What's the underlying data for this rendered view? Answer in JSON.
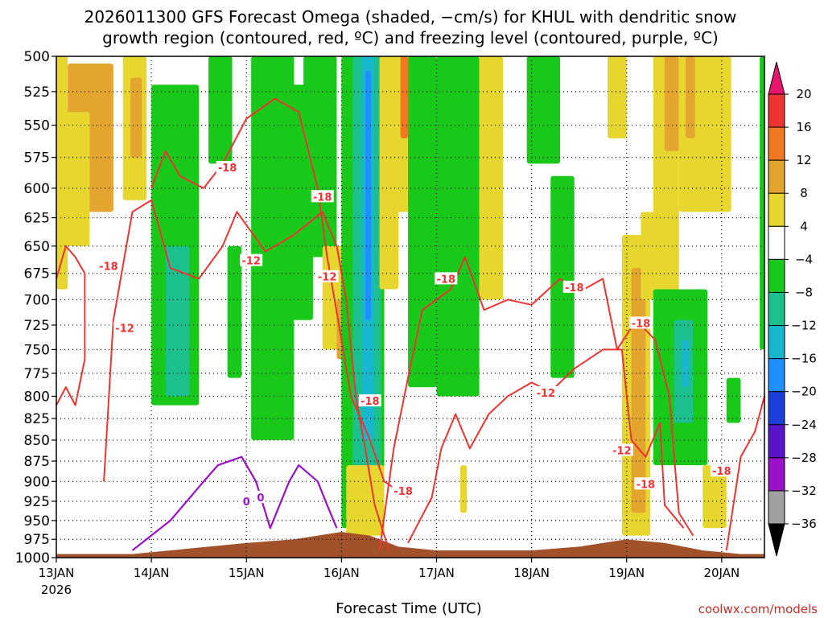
{
  "title": {
    "line1": "2026011300 GFS Forecast Omega (shaded, −cm/s) for KHUL with dendritic snow",
    "line2": "growth region (contoured, red, ºC) and freezing level (contoured, purple, ºC)"
  },
  "credit": "coolwx.com/models",
  "chart_data": {
    "type": "heatmap",
    "xlabel": "Forecast Time (UTC)",
    "ylabel": "",
    "x_start_year": "2026",
    "x_ticks": [
      "13JAN",
      "14JAN",
      "15JAN",
      "16JAN",
      "17JAN",
      "18JAN",
      "19JAN",
      "20JAN"
    ],
    "x_range_days": [
      0,
      7.45
    ],
    "y_ticks": [
      500,
      525,
      550,
      575,
      600,
      625,
      650,
      675,
      700,
      725,
      750,
      775,
      800,
      825,
      850,
      875,
      900,
      925,
      950,
      975,
      1000
    ],
    "y_range_hpa": [
      500,
      1000
    ],
    "grid": true,
    "colorbar": {
      "levels": [
        20,
        16,
        12,
        8,
        4,
        -4,
        -8,
        -12,
        -16,
        -20,
        -24,
        -28,
        -32,
        -36
      ],
      "bands": [
        {
          "from": 20,
          "to": 24,
          "color": "#e8156e"
        },
        {
          "from": 16,
          "to": 20,
          "color": "#ee3333"
        },
        {
          "from": 12,
          "to": 16,
          "color": "#f07820"
        },
        {
          "from": 8,
          "to": 12,
          "color": "#e4a52e"
        },
        {
          "from": 4,
          "to": 8,
          "color": "#e6d62e"
        },
        {
          "from": -4,
          "to": 4,
          "color": "#ffffff"
        },
        {
          "from": -8,
          "to": -4,
          "color": "#19c919"
        },
        {
          "from": -12,
          "to": -8,
          "color": "#1cbf8e"
        },
        {
          "from": -16,
          "to": -12,
          "color": "#19b7cf"
        },
        {
          "from": -20,
          "to": -16,
          "color": "#1e90ff"
        },
        {
          "from": -24,
          "to": -20,
          "color": "#1c3fdc"
        },
        {
          "from": -28,
          "to": -24,
          "color": "#5a14c8"
        },
        {
          "from": -32,
          "to": -28,
          "color": "#9a11c9"
        },
        {
          "from": -36,
          "to": -32,
          "color": "#a0a0a0"
        },
        {
          "from": -40,
          "to": -36,
          "color": "#000000"
        }
      ]
    },
    "omega_patches": [
      {
        "t0": 0.0,
        "t1": 0.12,
        "p0": 500,
        "p1": 690,
        "value": 6
      },
      {
        "t0": 0.12,
        "t1": 0.6,
        "p0": 505,
        "p1": 620,
        "value": 10
      },
      {
        "t0": 0.05,
        "t1": 0.35,
        "p0": 540,
        "p1": 650,
        "value": 6
      },
      {
        "t0": 0.7,
        "t1": 0.95,
        "p0": 500,
        "p1": 610,
        "value": 6
      },
      {
        "t0": 0.78,
        "t1": 0.9,
        "p0": 515,
        "p1": 575,
        "value": 10
      },
      {
        "t0": 1.0,
        "t1": 1.5,
        "p0": 520,
        "p1": 810,
        "value": -6
      },
      {
        "t0": 1.15,
        "t1": 1.4,
        "p0": 650,
        "p1": 800,
        "value": -10
      },
      {
        "t0": 1.6,
        "t1": 1.85,
        "p0": 500,
        "p1": 580,
        "value": -6
      },
      {
        "t0": 1.8,
        "t1": 1.95,
        "p0": 650,
        "p1": 780,
        "value": -6
      },
      {
        "t0": 2.05,
        "t1": 2.5,
        "p0": 500,
        "p1": 850,
        "value": -6
      },
      {
        "t0": 2.4,
        "t1": 2.7,
        "p0": 520,
        "p1": 720,
        "value": -6
      },
      {
        "t0": 2.6,
        "t1": 2.95,
        "p0": 500,
        "p1": 660,
        "value": -6
      },
      {
        "t0": 2.8,
        "t1": 3.05,
        "p0": 650,
        "p1": 750,
        "value": 6
      },
      {
        "t0": 2.95,
        "t1": 3.1,
        "p0": 700,
        "p1": 760,
        "value": 10
      },
      {
        "t0": 3.0,
        "t1": 3.45,
        "p0": 500,
        "p1": 960,
        "value": -6
      },
      {
        "t0": 3.12,
        "t1": 3.42,
        "p0": 500,
        "p1": 900,
        "value": -10
      },
      {
        "t0": 3.22,
        "t1": 3.34,
        "p0": 500,
        "p1": 850,
        "value": -14
      },
      {
        "t0": 3.25,
        "t1": 3.31,
        "p0": 510,
        "p1": 720,
        "value": -18
      },
      {
        "t0": 3.4,
        "t1": 3.6,
        "p0": 500,
        "p1": 690,
        "value": 6
      },
      {
        "t0": 3.55,
        "t1": 3.75,
        "p0": 500,
        "p1": 620,
        "value": 6
      },
      {
        "t0": 3.62,
        "t1": 3.7,
        "p0": 500,
        "p1": 560,
        "value": 14
      },
      {
        "t0": 3.05,
        "t1": 3.45,
        "p0": 880,
        "p1": 970,
        "value": 6
      },
      {
        "t0": 3.7,
        "t1": 4.0,
        "p0": 500,
        "p1": 790,
        "value": -6
      },
      {
        "t0": 4.0,
        "t1": 4.45,
        "p0": 500,
        "p1": 800,
        "value": -6
      },
      {
        "t0": 4.45,
        "t1": 4.7,
        "p0": 500,
        "p1": 700,
        "value": 6
      },
      {
        "t0": 4.25,
        "t1": 4.32,
        "p0": 880,
        "p1": 940,
        "value": 6
      },
      {
        "t0": 4.95,
        "t1": 5.3,
        "p0": 500,
        "p1": 580,
        "value": -6
      },
      {
        "t0": 5.2,
        "t1": 5.45,
        "p0": 590,
        "p1": 780,
        "value": -6
      },
      {
        "t0": 5.8,
        "t1": 6.0,
        "p0": 500,
        "p1": 560,
        "value": 6
      },
      {
        "t0": 5.95,
        "t1": 6.25,
        "p0": 640,
        "p1": 970,
        "value": 6
      },
      {
        "t0": 6.05,
        "t1": 6.2,
        "p0": 670,
        "p1": 940,
        "value": 10
      },
      {
        "t0": 6.28,
        "t1": 6.55,
        "p0": 500,
        "p1": 680,
        "value": 6
      },
      {
        "t0": 6.4,
        "t1": 6.55,
        "p0": 500,
        "p1": 570,
        "value": 10
      },
      {
        "t0": 6.15,
        "t1": 6.55,
        "p0": 620,
        "p1": 700,
        "value": 6
      },
      {
        "t0": 6.28,
        "t1": 6.85,
        "p0": 690,
        "p1": 880,
        "value": -6
      },
      {
        "t0": 6.5,
        "t1": 6.7,
        "p0": 720,
        "p1": 830,
        "value": -10
      },
      {
        "t0": 6.58,
        "t1": 6.65,
        "p0": 740,
        "p1": 790,
        "value": -14
      },
      {
        "t0": 6.55,
        "t1": 7.1,
        "p0": 500,
        "p1": 620,
        "value": 6
      },
      {
        "t0": 6.62,
        "t1": 6.72,
        "p0": 500,
        "p1": 560,
        "value": 10
      },
      {
        "t0": 6.8,
        "t1": 7.05,
        "p0": 880,
        "p1": 960,
        "value": 6
      },
      {
        "t0": 7.05,
        "t1": 7.2,
        "p0": 780,
        "p1": 830,
        "value": -6
      },
      {
        "t0": 7.4,
        "t1": 7.45,
        "p0": 500,
        "p1": 750,
        "value": -6
      }
    ],
    "dgz_contours": [
      {
        "label": "-12",
        "points": [
          [
            0,
            680
          ],
          [
            0.1,
            650
          ],
          [
            0.2,
            660
          ],
          [
            0.3,
            675
          ],
          [
            0.3,
            700
          ],
          [
            0.3,
            760
          ],
          [
            0.2,
            810
          ],
          [
            0.1,
            790
          ],
          [
            0,
            810
          ]
        ]
      },
      {
        "label": "-12",
        "points": [
          [
            0.5,
            900
          ],
          [
            0.6,
            720
          ],
          [
            0.8,
            620
          ],
          [
            1.0,
            610
          ],
          [
            1.2,
            670
          ],
          [
            1.5,
            680
          ],
          [
            1.75,
            650
          ],
          [
            1.9,
            620
          ],
          [
            2.2,
            655
          ],
          [
            2.5,
            640
          ],
          [
            2.8,
            620
          ],
          [
            2.95,
            650
          ],
          [
            3.05,
            700
          ],
          [
            3.15,
            800
          ],
          [
            3.25,
            860
          ],
          [
            3.35,
            930
          ],
          [
            3.5,
            990
          ]
        ]
      },
      {
        "label": "-18",
        "points": [
          [
            1.0,
            600
          ],
          [
            1.15,
            570
          ],
          [
            1.3,
            590
          ],
          [
            1.55,
            600
          ],
          [
            1.75,
            580
          ],
          [
            2.0,
            545
          ],
          [
            2.3,
            530
          ],
          [
            2.55,
            540
          ],
          [
            2.75,
            600
          ],
          [
            2.85,
            660
          ],
          [
            3.0,
            740
          ],
          [
            3.1,
            800
          ],
          [
            3.3,
            850
          ],
          [
            3.45,
            900
          ],
          [
            3.7,
            920
          ]
        ]
      },
      {
        "label": "-12",
        "points": [
          [
            3.7,
            980
          ],
          [
            3.95,
            920
          ],
          [
            4.05,
            860
          ],
          [
            4.2,
            820
          ],
          [
            4.35,
            860
          ],
          [
            4.55,
            820
          ],
          [
            4.75,
            800
          ],
          [
            5.0,
            785
          ],
          [
            5.2,
            795
          ],
          [
            5.45,
            770
          ],
          [
            5.6,
            760
          ],
          [
            5.75,
            750
          ]
        ]
      },
      {
        "label": "-18",
        "points": [
          [
            3.4,
            990
          ],
          [
            3.55,
            860
          ],
          [
            3.7,
            780
          ],
          [
            3.85,
            710
          ],
          [
            4.0,
            700
          ],
          [
            4.15,
            690
          ],
          [
            4.3,
            660
          ],
          [
            4.5,
            710
          ],
          [
            4.75,
            700
          ],
          [
            5.0,
            705
          ],
          [
            5.3,
            680
          ],
          [
            5.45,
            690
          ]
        ]
      },
      {
        "label": "-12",
        "points": [
          [
            5.75,
            750
          ],
          [
            5.95,
            750
          ],
          [
            6.05,
            850
          ],
          [
            6.2,
            870
          ],
          [
            6.35,
            830
          ],
          [
            6.4,
            930
          ],
          [
            6.6,
            960
          ]
        ]
      },
      {
        "label": "-18",
        "points": [
          [
            5.55,
            690
          ],
          [
            5.75,
            680
          ],
          [
            5.9,
            750
          ],
          [
            6.1,
            720
          ],
          [
            6.3,
            740
          ],
          [
            6.45,
            800
          ],
          [
            6.5,
            870
          ],
          [
            6.55,
            940
          ],
          [
            6.7,
            970
          ]
        ]
      },
      {
        "label": "-18",
        "points": [
          [
            7.05,
            990
          ],
          [
            7.2,
            870
          ],
          [
            7.35,
            840
          ],
          [
            7.45,
            800
          ]
        ]
      }
    ],
    "fz_contour": {
      "label": "0",
      "points": [
        [
          0.8,
          990
        ],
        [
          1.2,
          950
        ],
        [
          1.55,
          900
        ],
        [
          1.7,
          880
        ],
        [
          1.95,
          870
        ],
        [
          2.1,
          900
        ],
        [
          2.25,
          960
        ],
        [
          2.45,
          900
        ],
        [
          2.55,
          880
        ],
        [
          2.75,
          900
        ],
        [
          2.85,
          930
        ],
        [
          2.95,
          960
        ]
      ]
    },
    "contour_labels": [
      {
        "text": "-18",
        "t": 0.55,
        "p": 668,
        "color": "red"
      },
      {
        "text": "-12",
        "t": 0.72,
        "p": 728,
        "color": "red"
      },
      {
        "text": "-18",
        "t": 1.8,
        "p": 583,
        "color": "red"
      },
      {
        "text": "-12",
        "t": 2.05,
        "p": 663,
        "color": "red"
      },
      {
        "text": "-18",
        "t": 2.8,
        "p": 607,
        "color": "red"
      },
      {
        "text": "-12",
        "t": 2.85,
        "p": 678,
        "color": "red"
      },
      {
        "text": "-18",
        "t": 3.3,
        "p": 805,
        "color": "red"
      },
      {
        "text": "-18",
        "t": 3.65,
        "p": 912,
        "color": "red"
      },
      {
        "text": "-18",
        "t": 4.1,
        "p": 680,
        "color": "red"
      },
      {
        "text": "-12",
        "t": 5.15,
        "p": 796,
        "color": "red"
      },
      {
        "text": "-18",
        "t": 5.45,
        "p": 688,
        "color": "red"
      },
      {
        "text": "-12",
        "t": 5.95,
        "p": 862,
        "color": "red"
      },
      {
        "text": "-18",
        "t": 6.15,
        "p": 723,
        "color": "red"
      },
      {
        "text": "-18",
        "t": 6.2,
        "p": 903,
        "color": "red"
      },
      {
        "text": "-18",
        "t": 7.0,
        "p": 887,
        "color": "red"
      },
      {
        "text": "0",
        "t": 2.0,
        "p": 925,
        "color": "purple"
      },
      {
        "text": "0",
        "t": 2.15,
        "p": 920,
        "color": "purple"
      }
    ],
    "terrain": {
      "color": "#a2522a",
      "points": [
        [
          0,
          995
        ],
        [
          0.8,
          995
        ],
        [
          1.2,
          990
        ],
        [
          1.6,
          985
        ],
        [
          2.0,
          980
        ],
        [
          2.5,
          975
        ],
        [
          3.0,
          965
        ],
        [
          3.3,
          970
        ],
        [
          3.6,
          985
        ],
        [
          4.0,
          990
        ],
        [
          4.5,
          990
        ],
        [
          5.0,
          990
        ],
        [
          5.5,
          985
        ],
        [
          6.0,
          975
        ],
        [
          6.4,
          980
        ],
        [
          6.8,
          990
        ],
        [
          7.2,
          995
        ],
        [
          7.45,
          995
        ]
      ]
    }
  }
}
